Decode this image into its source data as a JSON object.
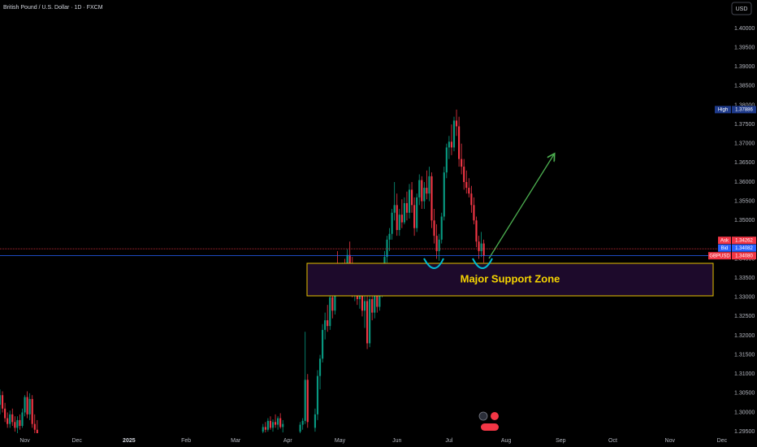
{
  "chart_data": {
    "type": "candlestick",
    "title": "British Pound / U.S. Dollar · 1D · FXCM",
    "currency": "USD",
    "annotation": "Major Support Zone",
    "up_color": "#089981",
    "down_color": "#f23645",
    "grid": false,
    "xlim": [
      0,
      293
    ],
    "ylim": [
      1.2946,
      1.4074
    ],
    "xticks": [
      {
        "value": 10,
        "label": "Nov"
      },
      {
        "value": 31,
        "label": "Dec"
      },
      {
        "value": 52,
        "label": "2025"
      },
      {
        "value": 75,
        "label": "Feb"
      },
      {
        "value": 95,
        "label": "Mar"
      },
      {
        "value": 116,
        "label": "Apr"
      },
      {
        "value": 137,
        "label": "May"
      },
      {
        "value": 160,
        "label": "Jun"
      },
      {
        "value": 181,
        "label": "Jul"
      },
      {
        "value": 204,
        "label": "Aug"
      },
      {
        "value": 226,
        "label": "Sep"
      },
      {
        "value": 247,
        "label": "Oct"
      },
      {
        "value": 270,
        "label": "Nov"
      },
      {
        "value": 291,
        "label": "Dec"
      }
    ],
    "yticks": [
      {
        "value": 1.295,
        "label": "1.29500"
      },
      {
        "value": 1.3,
        "label": "1.30000"
      },
      {
        "value": 1.305,
        "label": "1.30500"
      },
      {
        "value": 1.31,
        "label": "1.31000"
      },
      {
        "value": 1.315,
        "label": "1.31500"
      },
      {
        "value": 1.32,
        "label": "1.32000"
      },
      {
        "value": 1.325,
        "label": "1.32500"
      },
      {
        "value": 1.33,
        "label": "1.33000"
      },
      {
        "value": 1.335,
        "label": "1.33500"
      },
      {
        "value": 1.34,
        "label": "1.34000"
      },
      {
        "value": 1.345,
        "label": "1.34500"
      },
      {
        "value": 1.35,
        "label": "1.35000"
      },
      {
        "value": 1.355,
        "label": "1.35500"
      },
      {
        "value": 1.36,
        "label": "1.36000"
      },
      {
        "value": 1.365,
        "label": "1.36500"
      },
      {
        "value": 1.37,
        "label": "1.37000"
      },
      {
        "value": 1.375,
        "label": "1.37500"
      },
      {
        "value": 1.38,
        "label": "1.38000"
      },
      {
        "value": 1.385,
        "label": "1.38500"
      },
      {
        "value": 1.39,
        "label": "1.39000"
      },
      {
        "value": 1.395,
        "label": "1.39500"
      },
      {
        "value": 1.4,
        "label": "1.40000"
      }
    ],
    "price_markers": [
      {
        "name": "High",
        "value": 1.37886,
        "color": "#1e3a8a"
      },
      {
        "name": "Ask",
        "value": 1.34262,
        "color": "#f23645"
      },
      {
        "name": "Bid",
        "value": 1.34082,
        "color": "#2962ff"
      },
      {
        "name": "GBPUSD",
        "value": 1.3408,
        "label": "1.34080",
        "color": "#f23645"
      }
    ],
    "x": [
      0,
      1,
      2,
      3,
      4,
      5,
      6,
      7,
      8,
      9,
      10,
      11,
      12,
      13,
      14,
      15,
      106,
      107,
      108,
      109,
      110,
      111,
      112,
      113,
      114,
      121,
      122,
      123,
      124,
      127,
      128,
      129,
      130,
      131,
      132,
      133,
      134,
      135,
      136,
      137,
      138,
      139,
      140,
      141,
      142,
      143,
      144,
      145,
      146,
      147,
      148,
      149,
      150,
      151,
      152,
      153,
      154,
      155,
      156,
      157,
      158,
      159,
      160,
      161,
      162,
      163,
      164,
      165,
      166,
      167,
      168,
      169,
      170,
      171,
      172,
      173,
      174,
      175,
      176,
      177,
      178,
      179,
      180,
      181,
      182,
      183,
      184,
      185,
      186,
      187,
      188,
      189,
      190,
      191,
      192,
      193,
      194,
      195
    ],
    "open": [
      1.302,
      1.3045,
      1.301,
      1.2985,
      1.297,
      1.2995,
      1.2975,
      1.296,
      1.298,
      1.2965,
      1.3,
      1.304,
      1.2995,
      1.3035,
      1.297,
      1.2955,
      1.295,
      1.2962,
      1.2955,
      1.2978,
      1.296,
      1.2975,
      1.2968,
      1.2985,
      1.2962,
      1.295,
      1.2968,
      1.2978,
      1.3085,
      1.296,
      1.2995,
      1.3095,
      1.314,
      1.3215,
      1.324,
      1.3225,
      1.33,
      1.3265,
      1.337,
      1.3355,
      1.333,
      1.338,
      1.3335,
      1.341,
      1.3385,
      1.332,
      1.3355,
      1.3295,
      1.3335,
      1.3265,
      1.329,
      1.318,
      1.3295,
      1.326,
      1.331,
      1.3275,
      1.3335,
      1.3355,
      1.3405,
      1.345,
      1.3465,
      1.352,
      1.354,
      1.3475,
      1.3515,
      1.3495,
      1.3545,
      1.352,
      1.358,
      1.354,
      1.348,
      1.356,
      1.3605,
      1.355,
      1.3585,
      1.357,
      1.3615,
      1.35,
      1.346,
      1.342,
      1.345,
      1.351,
      1.3625,
      1.369,
      1.3705,
      1.369,
      1.376,
      1.3745,
      1.366,
      1.364,
      1.36,
      1.3585,
      1.357,
      1.354,
      1.35,
      1.3445,
      1.342,
      1.344
    ],
    "high": [
      1.306,
      1.3055,
      1.3025,
      1.3,
      1.3005,
      1.301,
      1.299,
      1.299,
      1.2995,
      1.301,
      1.3045,
      1.3055,
      1.305,
      1.3045,
      1.2995,
      1.298,
      1.297,
      1.2975,
      1.2985,
      1.299,
      1.2982,
      1.2995,
      1.299,
      1.2998,
      1.298,
      1.2975,
      1.2985,
      1.321,
      1.31,
      1.301,
      1.311,
      1.315,
      1.323,
      1.326,
      1.328,
      1.331,
      1.333,
      1.338,
      1.342,
      1.3375,
      1.339,
      1.34,
      1.3425,
      1.3445,
      1.3405,
      1.337,
      1.338,
      1.335,
      1.336,
      1.331,
      1.3305,
      1.331,
      1.332,
      1.333,
      1.335,
      1.3345,
      1.337,
      1.342,
      1.346,
      1.348,
      1.353,
      1.36,
      1.357,
      1.353,
      1.3555,
      1.356,
      1.3575,
      1.3595,
      1.36,
      1.356,
      1.357,
      1.362,
      1.3615,
      1.36,
      1.363,
      1.364,
      1.3625,
      1.353,
      1.349,
      1.3465,
      1.352,
      1.364,
      1.37,
      1.372,
      1.375,
      1.377,
      1.37886,
      1.377,
      1.37,
      1.366,
      1.363,
      1.361,
      1.359,
      1.356,
      1.351,
      1.346,
      1.347,
      1.345
    ],
    "low": [
      1.2995,
      1.3,
      1.2975,
      1.296,
      1.296,
      1.2965,
      1.295,
      1.2945,
      1.2955,
      1.296,
      1.299,
      1.2985,
      1.298,
      1.296,
      1.2935,
      1.293,
      1.2946,
      1.2948,
      1.295,
      1.2955,
      1.295,
      1.296,
      1.2955,
      1.2958,
      1.2948,
      1.2946,
      1.2955,
      1.297,
      1.296,
      1.295,
      1.298,
      1.306,
      1.313,
      1.319,
      1.321,
      1.3215,
      1.3245,
      1.3255,
      1.334,
      1.331,
      1.332,
      1.332,
      1.3325,
      1.337,
      1.33,
      1.329,
      1.328,
      1.327,
      1.325,
      1.322,
      1.3165,
      1.317,
      1.324,
      1.3245,
      1.326,
      1.3265,
      1.33,
      1.334,
      1.339,
      1.342,
      1.345,
      1.35,
      1.346,
      1.346,
      1.348,
      1.349,
      1.35,
      1.3505,
      1.352,
      1.346,
      1.347,
      1.354,
      1.353,
      1.353,
      1.3555,
      1.355,
      1.348,
      1.344,
      1.34,
      1.3395,
      1.344,
      1.35,
      1.361,
      1.366,
      1.367,
      1.368,
      1.372,
      1.364,
      1.362,
      1.358,
      1.357,
      1.356,
      1.352,
      1.349,
      1.343,
      1.34,
      1.3405,
      1.339
    ],
    "close": [
      1.3045,
      1.301,
      1.2985,
      1.297,
      1.2995,
      1.2975,
      1.296,
      1.298,
      1.2965,
      1.3,
      1.304,
      1.2995,
      1.3035,
      1.297,
      1.2955,
      1.2945,
      1.2962,
      1.2955,
      1.2978,
      1.296,
      1.2975,
      1.2968,
      1.2985,
      1.2962,
      1.297,
      1.2968,
      1.2978,
      1.3085,
      1.2975,
      1.2995,
      1.3095,
      1.314,
      1.3215,
      1.324,
      1.3225,
      1.33,
      1.3265,
      1.337,
      1.3355,
      1.333,
      1.338,
      1.3335,
      1.341,
      1.3385,
      1.332,
      1.3355,
      1.3295,
      1.3335,
      1.3265,
      1.329,
      1.318,
      1.3295,
      1.326,
      1.331,
      1.3275,
      1.3335,
      1.3355,
      1.3405,
      1.345,
      1.3465,
      1.352,
      1.354,
      1.3475,
      1.3515,
      1.3495,
      1.3545,
      1.352,
      1.358,
      1.354,
      1.348,
      1.356,
      1.3605,
      1.355,
      1.3585,
      1.357,
      1.3615,
      1.35,
      1.346,
      1.342,
      1.345,
      1.351,
      1.3625,
      1.369,
      1.3705,
      1.369,
      1.376,
      1.3745,
      1.366,
      1.364,
      1.36,
      1.3585,
      1.357,
      1.354,
      1.35,
      1.3445,
      1.342,
      1.344,
      1.3408
    ]
  }
}
